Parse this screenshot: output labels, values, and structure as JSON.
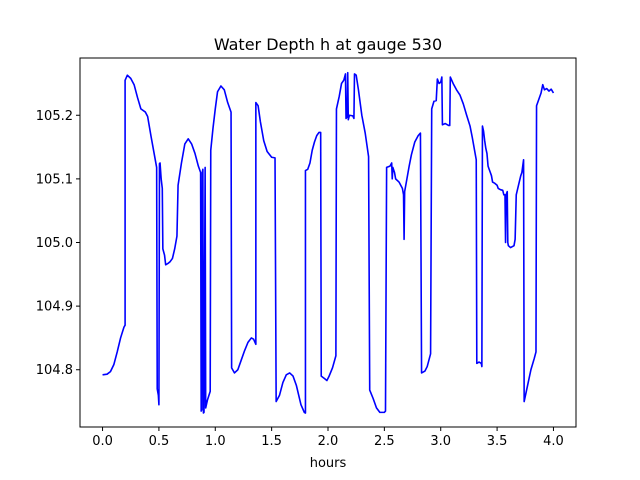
{
  "chart_data": {
    "type": "line",
    "title": "Water Depth h at gauge 530",
    "xlabel": "hours",
    "ylabel": "",
    "xlim": [
      -0.2,
      4.2
    ],
    "ylim": [
      104.71,
      105.29
    ],
    "xticks": [
      0.0,
      0.5,
      1.0,
      1.5,
      2.0,
      2.5,
      3.0,
      3.5,
      4.0
    ],
    "xtick_labels": [
      "0.0",
      "0.5",
      "1.0",
      "1.5",
      "2.0",
      "2.5",
      "3.0",
      "3.5",
      "4.0"
    ],
    "yticks": [
      104.8,
      104.9,
      105.0,
      105.1,
      105.2
    ],
    "ytick_labels": [
      "104.8",
      "104.9",
      "105.0",
      "105.1",
      "105.2"
    ],
    "grid": false,
    "series": [
      {
        "color": "#0000ff",
        "points": [
          [
            0.0,
            104.792
          ],
          [
            0.04,
            104.793
          ],
          [
            0.07,
            104.797
          ],
          [
            0.1,
            104.808
          ],
          [
            0.13,
            104.828
          ],
          [
            0.16,
            104.85
          ],
          [
            0.19,
            104.867
          ],
          [
            0.2,
            104.87
          ],
          [
            0.2,
            105.255
          ],
          [
            0.22,
            105.263
          ],
          [
            0.25,
            105.258
          ],
          [
            0.28,
            105.248
          ],
          [
            0.31,
            105.228
          ],
          [
            0.34,
            105.21
          ],
          [
            0.38,
            105.205
          ],
          [
            0.4,
            105.198
          ],
          [
            0.43,
            105.167
          ],
          [
            0.48,
            105.118
          ],
          [
            0.485,
            104.77
          ],
          [
            0.495,
            104.76
          ],
          [
            0.5,
            104.745
          ],
          [
            0.505,
            105.124
          ],
          [
            0.51,
            105.125
          ],
          [
            0.52,
            105.1
          ],
          [
            0.53,
            105.085
          ],
          [
            0.535,
            104.99
          ],
          [
            0.55,
            104.98
          ],
          [
            0.56,
            104.965
          ],
          [
            0.58,
            104.967
          ],
          [
            0.6,
            104.97
          ],
          [
            0.62,
            104.975
          ],
          [
            0.64,
            104.99
          ],
          [
            0.66,
            105.01
          ],
          [
            0.67,
            105.09
          ],
          [
            0.7,
            105.125
          ],
          [
            0.73,
            105.155
          ],
          [
            0.76,
            105.163
          ],
          [
            0.79,
            105.155
          ],
          [
            0.82,
            105.14
          ],
          [
            0.85,
            105.12
          ],
          [
            0.87,
            105.11
          ],
          [
            0.875,
            104.735
          ],
          [
            0.88,
            104.737
          ],
          [
            0.885,
            105.11
          ],
          [
            0.89,
            105.115
          ],
          [
            0.895,
            104.732
          ],
          [
            0.9,
            104.733
          ],
          [
            0.91,
            105.118
          ],
          [
            0.915,
            104.74
          ],
          [
            0.93,
            104.752
          ],
          [
            0.955,
            104.766
          ],
          [
            0.96,
            105.145
          ],
          [
            0.98,
            105.18
          ],
          [
            1.0,
            105.21
          ],
          [
            1.02,
            105.237
          ],
          [
            1.05,
            105.246
          ],
          [
            1.08,
            105.24
          ],
          [
            1.11,
            105.22
          ],
          [
            1.14,
            105.205
          ],
          [
            1.145,
            104.803
          ],
          [
            1.17,
            104.795
          ],
          [
            1.2,
            104.8
          ],
          [
            1.23,
            104.815
          ],
          [
            1.26,
            104.83
          ],
          [
            1.29,
            104.843
          ],
          [
            1.32,
            104.85
          ],
          [
            1.34,
            104.848
          ],
          [
            1.36,
            104.84
          ],
          [
            1.36,
            105.22
          ],
          [
            1.38,
            105.215
          ],
          [
            1.4,
            105.19
          ],
          [
            1.43,
            105.16
          ],
          [
            1.46,
            105.143
          ],
          [
            1.5,
            105.134
          ],
          [
            1.53,
            105.133
          ],
          [
            1.54,
            104.75
          ],
          [
            1.57,
            104.76
          ],
          [
            1.6,
            104.78
          ],
          [
            1.63,
            104.792
          ],
          [
            1.66,
            104.795
          ],
          [
            1.69,
            104.79
          ],
          [
            1.72,
            104.775
          ],
          [
            1.76,
            104.745
          ],
          [
            1.79,
            104.733
          ],
          [
            1.8,
            104.732
          ],
          [
            1.8,
            105.113
          ],
          [
            1.82,
            105.115
          ],
          [
            1.84,
            105.125
          ],
          [
            1.86,
            105.145
          ],
          [
            1.88,
            105.158
          ],
          [
            1.9,
            105.168
          ],
          [
            1.92,
            105.173
          ],
          [
            1.935,
            105.173
          ],
          [
            1.94,
            104.79
          ],
          [
            1.97,
            104.786
          ],
          [
            1.99,
            104.783
          ],
          [
            2.01,
            104.79
          ],
          [
            2.04,
            104.803
          ],
          [
            2.07,
            104.822
          ],
          [
            2.075,
            105.21
          ],
          [
            2.1,
            105.23
          ],
          [
            2.12,
            105.25
          ],
          [
            2.14,
            105.255
          ],
          [
            2.155,
            105.265
          ],
          [
            2.16,
            105.195
          ],
          [
            2.17,
            105.198
          ],
          [
            2.175,
            105.267
          ],
          [
            2.18,
            105.193
          ],
          [
            2.19,
            105.2
          ],
          [
            2.22,
            105.199
          ],
          [
            2.23,
            105.195
          ],
          [
            2.235,
            105.265
          ],
          [
            2.25,
            105.263
          ],
          [
            2.27,
            105.24
          ],
          [
            2.3,
            105.2
          ],
          [
            2.33,
            105.172
          ],
          [
            2.36,
            105.135
          ],
          [
            2.37,
            104.768
          ],
          [
            2.4,
            104.755
          ],
          [
            2.43,
            104.74
          ],
          [
            2.46,
            104.733
          ],
          [
            2.5,
            104.733
          ],
          [
            2.51,
            104.735
          ],
          [
            2.52,
            105.118
          ],
          [
            2.55,
            105.12
          ],
          [
            2.565,
            105.125
          ],
          [
            2.57,
            105.1
          ],
          [
            2.575,
            105.118
          ],
          [
            2.59,
            105.11
          ],
          [
            2.6,
            105.1
          ],
          [
            2.63,
            105.095
          ],
          [
            2.66,
            105.085
          ],
          [
            2.67,
            105.075
          ],
          [
            2.675,
            105.005
          ],
          [
            2.68,
            105.08
          ],
          [
            2.7,
            105.1
          ],
          [
            2.72,
            105.12
          ],
          [
            2.74,
            105.138
          ],
          [
            2.77,
            105.158
          ],
          [
            2.8,
            105.168
          ],
          [
            2.82,
            105.172
          ],
          [
            2.83,
            104.795
          ],
          [
            2.86,
            104.798
          ],
          [
            2.88,
            104.805
          ],
          [
            2.91,
            104.825
          ],
          [
            2.92,
            105.21
          ],
          [
            2.94,
            105.222
          ],
          [
            2.96,
            105.223
          ],
          [
            2.97,
            105.257
          ],
          [
            2.985,
            105.25
          ],
          [
            3.0,
            105.252
          ],
          [
            3.01,
            105.26
          ],
          [
            3.015,
            105.185
          ],
          [
            3.04,
            105.187
          ],
          [
            3.07,
            105.184
          ],
          [
            3.08,
            105.184
          ],
          [
            3.085,
            105.26
          ],
          [
            3.11,
            105.25
          ],
          [
            3.14,
            105.24
          ],
          [
            3.17,
            105.232
          ],
          [
            3.2,
            105.218
          ],
          [
            3.23,
            105.2
          ],
          [
            3.26,
            105.183
          ],
          [
            3.28,
            105.165
          ],
          [
            3.3,
            105.145
          ],
          [
            3.315,
            105.13
          ],
          [
            3.32,
            104.81
          ],
          [
            3.34,
            104.812
          ],
          [
            3.36,
            104.81
          ],
          [
            3.365,
            104.805
          ],
          [
            3.37,
            105.183
          ],
          [
            3.38,
            105.175
          ],
          [
            3.39,
            105.16
          ],
          [
            3.4,
            105.148
          ],
          [
            3.41,
            105.14
          ],
          [
            3.42,
            105.12
          ],
          [
            3.43,
            105.115
          ],
          [
            3.44,
            105.11
          ],
          [
            3.45,
            105.105
          ],
          [
            3.46,
            105.095
          ],
          [
            3.48,
            105.093
          ],
          [
            3.5,
            105.09
          ],
          [
            3.51,
            105.085
          ],
          [
            3.53,
            105.083
          ],
          [
            3.55,
            105.082
          ],
          [
            3.56,
            105.075
          ],
          [
            3.57,
            105.075
          ],
          [
            3.575,
            105.0
          ],
          [
            3.58,
            105.075
          ],
          [
            3.59,
            105.08
          ],
          [
            3.595,
            105.0
          ],
          [
            3.6,
            104.995
          ],
          [
            3.62,
            104.992
          ],
          [
            3.65,
            104.995
          ],
          [
            3.66,
            105.005
          ],
          [
            3.67,
            105.075
          ],
          [
            3.69,
            105.09
          ],
          [
            3.71,
            105.105
          ],
          [
            3.72,
            105.11
          ],
          [
            3.735,
            105.13
          ],
          [
            3.74,
            104.75
          ],
          [
            3.77,
            104.775
          ],
          [
            3.8,
            104.8
          ],
          [
            3.83,
            104.818
          ],
          [
            3.845,
            104.828
          ],
          [
            3.85,
            105.215
          ],
          [
            3.87,
            105.225
          ],
          [
            3.89,
            105.235
          ],
          [
            3.905,
            105.248
          ],
          [
            3.92,
            105.24
          ],
          [
            3.94,
            105.242
          ],
          [
            3.96,
            105.238
          ],
          [
            3.98,
            105.241
          ],
          [
            4.0,
            105.235
          ]
        ]
      }
    ]
  }
}
